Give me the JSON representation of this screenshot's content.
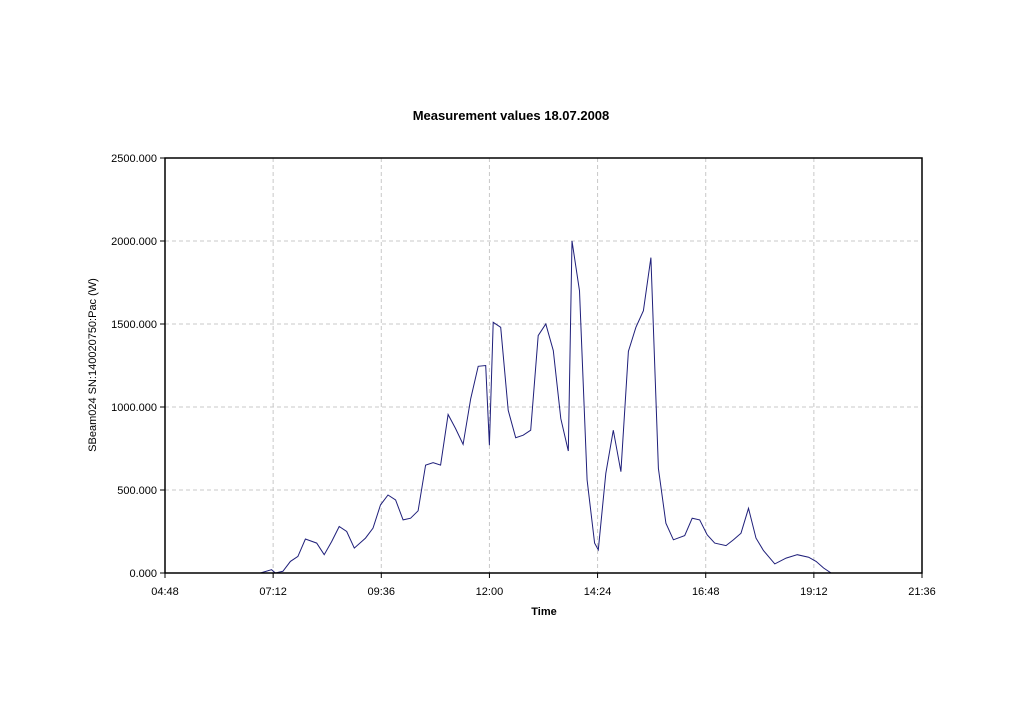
{
  "chart_data": {
    "type": "line",
    "title": "Measurement values 18.07.2008",
    "xlabel": "Time",
    "ylabel": "SBeam024 SN:140020750:Pac (W)",
    "x_ticks": [
      "04:48",
      "07:12",
      "09:36",
      "12:00",
      "14:24",
      "16:48",
      "19:12",
      "21:36"
    ],
    "xlim": [
      "04:48",
      "21:36"
    ],
    "y_ticks": [
      "0.000",
      "500.000",
      "1000.000",
      "1500.000",
      "2000.000",
      "2500.000"
    ],
    "ylim": [
      0,
      2500
    ],
    "grid": true,
    "legend": "none",
    "colors": {
      "line": "#1f1f7a",
      "grid": "#c8c8c8",
      "frame": "#000000"
    },
    "series": [
      {
        "x": [
          "06:55",
          "07:10",
          "07:15",
          "07:25",
          "07:35",
          "07:45",
          "07:55",
          "08:10",
          "08:20",
          "08:30",
          "08:40",
          "08:50",
          "09:00",
          "09:15",
          "09:25",
          "09:35",
          "09:45",
          "09:55",
          "10:05",
          "10:15",
          "10:25",
          "10:35",
          "10:45",
          "10:55",
          "11:05",
          "11:15",
          "11:25",
          "11:35",
          "11:45",
          "11:55",
          "12:00",
          "12:05",
          "12:15",
          "12:25",
          "12:35",
          "12:45",
          "12:55",
          "13:05",
          "13:15",
          "13:25",
          "13:35",
          "13:45",
          "13:50",
          "14:00",
          "14:10",
          "14:20",
          "14:25",
          "14:35",
          "14:45",
          "14:55",
          "15:05",
          "15:15",
          "15:25",
          "15:35",
          "15:45",
          "15:55",
          "16:05",
          "16:20",
          "16:30",
          "16:40",
          "16:50",
          "17:00",
          "17:15",
          "17:25",
          "17:35",
          "17:45",
          "17:55",
          "18:05",
          "18:20",
          "18:35",
          "18:50",
          "19:05",
          "19:15",
          "19:25",
          "19:35",
          "19:45",
          "19:55",
          "20:05"
        ],
        "y": [
          0,
          20,
          0,
          10,
          70,
          100,
          205,
          180,
          110,
          190,
          280,
          250,
          150,
          210,
          270,
          410,
          470,
          440,
          320,
          330,
          375,
          650,
          665,
          650,
          955,
          870,
          775,
          1050,
          1245,
          1250,
          770,
          1510,
          1480,
          980,
          815,
          830,
          860,
          1430,
          1500,
          1340,
          930,
          735,
          2000,
          1700,
          560,
          180,
          140,
          600,
          860,
          610,
          1335,
          1480,
          1580,
          1900,
          630,
          300,
          200,
          225,
          330,
          320,
          230,
          180,
          165,
          200,
          240,
          390,
          210,
          135,
          55,
          90,
          110,
          95,
          70,
          30,
          0,
          0,
          0,
          0
        ]
      }
    ]
  }
}
